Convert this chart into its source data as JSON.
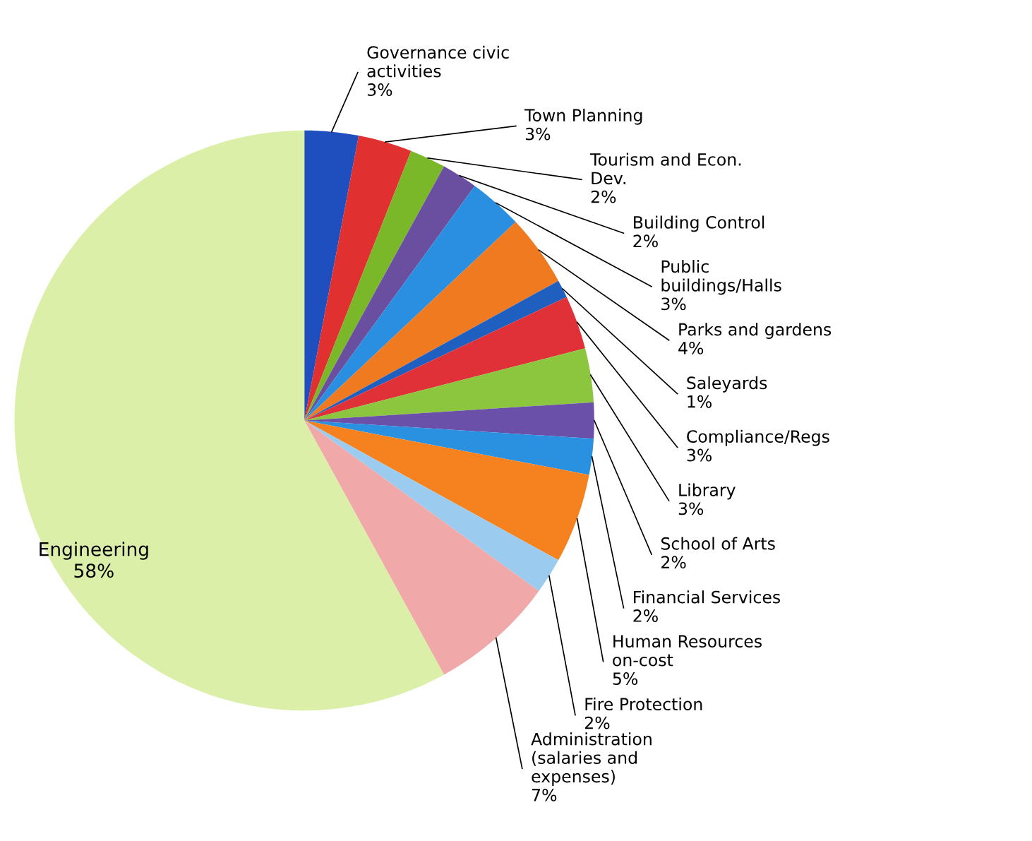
{
  "chart_data": {
    "type": "pie",
    "categories": [
      "Governance civic\nactivities",
      "Town Planning",
      "Tourism and Econ.\nDev.",
      "Building Control",
      "Public\nbuildings/Halls",
      "Parks and gardens",
      "Saleyards",
      "Compliance/Regs",
      "Library",
      "School of Arts",
      "Financial Services",
      "Human Resources\non-cost",
      "Fire Protection",
      "Administration\n(salaries and\nexpenses)",
      "Engineering"
    ],
    "values": [
      3,
      3,
      2,
      2,
      3,
      4,
      1,
      3,
      3,
      2,
      2,
      5,
      2,
      7,
      58
    ],
    "value_labels": [
      "3%",
      "3%",
      "2%",
      "2%",
      "3%",
      "4%",
      "1%",
      "3%",
      "3%",
      "2%",
      "2%",
      "5%",
      "2%",
      "7%",
      "58%"
    ],
    "colors": [
      "#1f4fbf",
      "#e03030",
      "#7ab82a",
      "#6a4fa0",
      "#2a8fe0",
      "#f07a20",
      "#1f5fc0",
      "#e03038",
      "#8cc63e",
      "#6a50a8",
      "#2a90e0",
      "#f5821f",
      "#9ccbf0",
      "#f0a8a8",
      "#dcefa8"
    ],
    "legend": false
  }
}
